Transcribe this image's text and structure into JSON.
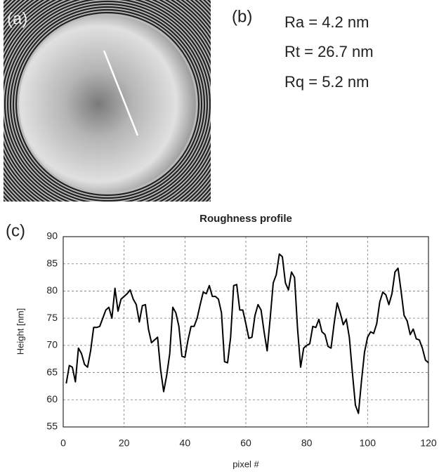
{
  "panels": {
    "a": {
      "label": "(a)"
    },
    "b": {
      "label": "(b)",
      "lines": [
        "Ra = 4.2 nm",
        "Rt  = 26.7 nm",
        "Rq = 5.2 nm"
      ]
    }
  },
  "chart_data": {
    "type": "line",
    "panel_label": "(c)",
    "title": "Roughness profile",
    "x_label": "pixel #",
    "y_label": "Height [nm]",
    "color": "#000000",
    "grid": true,
    "xlim": [
      0,
      120
    ],
    "xticks": [
      0,
      20,
      40,
      60,
      80,
      100,
      120
    ],
    "ylim": [
      55,
      90
    ],
    "yticks": [
      55,
      60,
      65,
      70,
      75,
      80,
      85,
      90
    ],
    "x": [
      1,
      2,
      3,
      4,
      5,
      6,
      7,
      8,
      9,
      10,
      11,
      12,
      13,
      14,
      15,
      16,
      17,
      18,
      19,
      20,
      21,
      22,
      23,
      24,
      25,
      26,
      27,
      28,
      29,
      30,
      31,
      32,
      33,
      34,
      35,
      36,
      37,
      38,
      39,
      40,
      41,
      42,
      43,
      44,
      45,
      46,
      47,
      48,
      49,
      50,
      51,
      52,
      53,
      54,
      55,
      56,
      57,
      58,
      59,
      60,
      61,
      62,
      63,
      64,
      65,
      66,
      67,
      68,
      69,
      70,
      71,
      72,
      73,
      74,
      75,
      76,
      77,
      78,
      79,
      80,
      81,
      82,
      83,
      84,
      85,
      86,
      87,
      88,
      89,
      90,
      91,
      92,
      93,
      94,
      95,
      96,
      97,
      98,
      99,
      100,
      101,
      102,
      103,
      104,
      105,
      106,
      107,
      108,
      109,
      110,
      111,
      112,
      113,
      114,
      115,
      116,
      117,
      118,
      119,
      120
    ],
    "values": [
      63,
      66.3,
      66,
      63.3,
      69.5,
      68.5,
      66.5,
      66,
      69,
      73.3,
      73.3,
      73.5,
      75,
      76.5,
      77,
      75,
      80.5,
      76.3,
      78.5,
      79,
      79.5,
      80.2,
      78.5,
      77.5,
      74.3,
      77.3,
      77.5,
      73,
      70.5,
      71,
      71.5,
      65.5,
      61.5,
      64.5,
      68.5,
      77,
      76,
      73.5,
      68,
      67.8,
      71,
      73.5,
      73.5,
      75,
      77.5,
      79.8,
      79.5,
      81,
      79,
      79,
      78.5,
      76,
      67,
      66.8,
      71.5,
      81,
      81.2,
      76.5,
      76.5,
      74,
      71.3,
      71.5,
      75.5,
      77.5,
      76.5,
      72.5,
      69,
      75,
      81.5,
      83,
      86.8,
      86.3,
      81.5,
      80.2,
      83.5,
      82.5,
      73,
      66,
      69.5,
      70,
      70.3,
      73.5,
      73.3,
      74.8,
      72.5,
      72,
      69.8,
      69.5,
      74,
      77.8,
      76,
      73.8,
      74.8,
      71.5,
      65,
      59,
      57.5,
      63.5,
      68.8,
      71.5,
      72.5,
      72.2,
      74,
      78,
      79.8,
      79.3,
      77.5,
      79.5,
      83.5,
      84.2,
      80,
      75.5,
      74.5,
      72,
      73,
      71.2,
      71,
      69.5,
      67.3,
      66.8
    ]
  }
}
